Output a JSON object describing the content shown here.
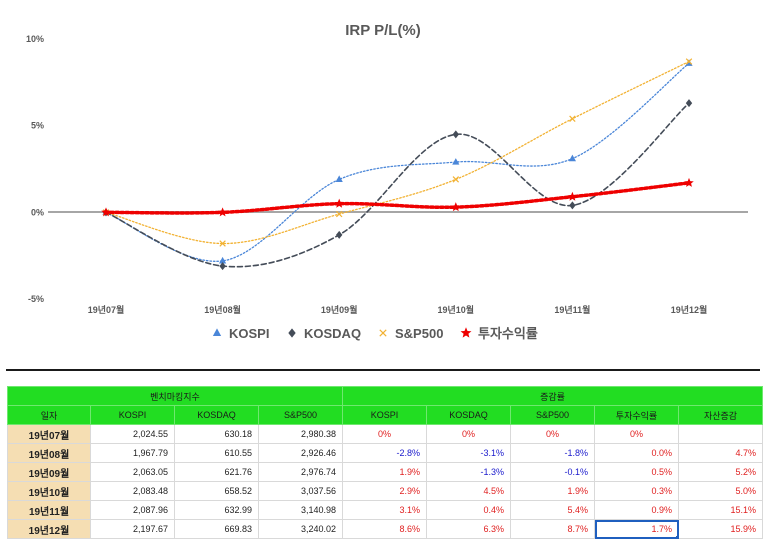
{
  "chart_data": {
    "type": "line",
    "title": "IRP P/L(%)",
    "categories": [
      "19년07월",
      "19년08월",
      "19년09월",
      "19년10월",
      "19년11월",
      "19년12월"
    ],
    "y_ticks": [
      "10%",
      "5%",
      "0%",
      "-5%"
    ],
    "ylim": [
      -5,
      10
    ],
    "series": [
      {
        "name": "KOSPI",
        "values": [
          0,
          -2.8,
          1.9,
          2.9,
          3.1,
          8.6
        ],
        "color": "#4a86d8",
        "marker": "▲"
      },
      {
        "name": "KOSDAQ",
        "values": [
          0,
          -3.1,
          -1.3,
          4.5,
          0.4,
          6.3
        ],
        "color": "#444c58",
        "marker": "◆"
      },
      {
        "name": "S&P500",
        "values": [
          0,
          -1.8,
          -0.1,
          1.9,
          5.4,
          8.7
        ],
        "color": "#f2b233",
        "marker": "×"
      },
      {
        "name": "투자수익률",
        "values": [
          0,
          0.0,
          0.5,
          0.3,
          0.9,
          1.7
        ],
        "color": "#ee0000",
        "marker": "★"
      }
    ]
  },
  "table": {
    "group_headers": [
      "벤치마킹지수",
      "증감률"
    ],
    "columns": [
      "일자",
      "KOSPI",
      "KOSDAQ",
      "S&P500",
      "KOSPI",
      "KOSDAQ",
      "S&P500",
      "투자수익률",
      "자산증감"
    ],
    "rows": [
      {
        "date": "19년07월",
        "kospi": "2,024.55",
        "kosdaq": "630.18",
        "sp500": "2,980.38",
        "kospi_r": "0%",
        "kosdaq_r": "0%",
        "sp500_r": "0%",
        "ret": "0%",
        "asset": ""
      },
      {
        "date": "19년08월",
        "kospi": "1,967.79",
        "kosdaq": "610.55",
        "sp500": "2,926.46",
        "kospi_r": "-2.8%",
        "kosdaq_r": "-3.1%",
        "sp500_r": "-1.8%",
        "ret": "0.0%",
        "asset": "4.7%"
      },
      {
        "date": "19년09월",
        "kospi": "2,063.05",
        "kosdaq": "621.76",
        "sp500": "2,976.74",
        "kospi_r": "1.9%",
        "kosdaq_r": "-1.3%",
        "sp500_r": "-0.1%",
        "ret": "0.5%",
        "asset": "5.2%"
      },
      {
        "date": "19년10월",
        "kospi": "2,083.48",
        "kosdaq": "658.52",
        "sp500": "3,037.56",
        "kospi_r": "2.9%",
        "kosdaq_r": "4.5%",
        "sp500_r": "1.9%",
        "ret": "0.3%",
        "asset": "5.0%"
      },
      {
        "date": "19년11월",
        "kospi": "2,087.96",
        "kosdaq": "632.99",
        "sp500": "3,140.98",
        "kospi_r": "3.1%",
        "kosdaq_r": "0.4%",
        "sp500_r": "5.4%",
        "ret": "0.9%",
        "asset": "15.1%"
      },
      {
        "date": "19년12월",
        "kospi": "2,197.67",
        "kosdaq": "669.83",
        "sp500": "3,240.02",
        "kospi_r": "8.6%",
        "kosdaq_r": "6.3%",
        "sp500_r": "8.7%",
        "ret": "1.7%",
        "asset": "15.9%"
      }
    ],
    "colors": {
      "positive": "#e02020",
      "negative": "#1a1acc",
      "zero": "#e02020"
    }
  }
}
